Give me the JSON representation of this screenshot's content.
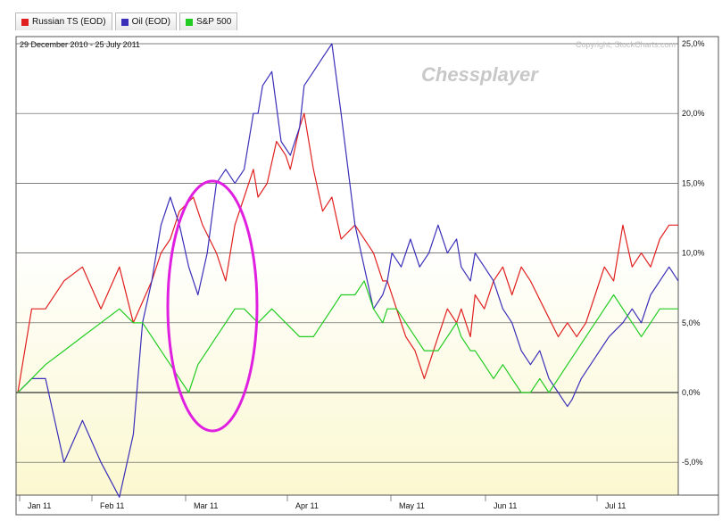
{
  "legend": [
    {
      "label": "Russian TS (EOD)",
      "color": "#e02020"
    },
    {
      "label": "Oil (EOD)",
      "color": "#3a2fb8"
    },
    {
      "label": "S&P 500",
      "color": "#22cc22"
    }
  ],
  "header": {
    "date_range": "29 December 2010 - 25 July 2011",
    "copyright": "Copyright, StockCharts.com"
  },
  "watermark": "Chessplayer",
  "colors": {
    "annotation_circle": "#e020e0",
    "background_bottom": "#fbf8d0"
  },
  "chart_data": {
    "type": "line",
    "x_ticks": [
      "Jan 11",
      "Feb 11",
      "Mar 11",
      "Apr 11",
      "May 11",
      "Jun 11",
      "Jul 11"
    ],
    "y_ticks": [
      "25,0%",
      "20,0%",
      "15,0%",
      "10,0%",
      "5,0%",
      "0,0%",
      "-5,0%"
    ],
    "ylim": [
      -7.5,
      25.5
    ],
    "xlim": [
      0,
      143
    ],
    "grid": true,
    "series": [
      {
        "name": "Russian TS (EOD)",
        "color": "#e02020",
        "x": [
          0,
          3,
          6,
          10,
          14,
          18,
          22,
          25,
          29,
          31,
          33,
          35,
          38,
          40,
          43,
          45,
          47,
          49,
          51,
          52,
          54,
          56,
          58,
          59,
          61,
          62,
          64,
          66,
          68,
          70,
          73,
          77,
          79,
          80,
          82,
          84,
          86,
          88,
          91,
          93,
          95,
          96,
          98,
          99,
          101,
          103,
          105,
          107,
          109,
          111,
          114,
          117,
          119,
          121,
          123,
          125,
          127,
          129,
          131,
          133,
          135,
          137,
          139,
          141,
          143
        ],
        "y": [
          0,
          6,
          6,
          8,
          9,
          6,
          9,
          5,
          8,
          10,
          11,
          13,
          14,
          12,
          10,
          8,
          12,
          14,
          16,
          14,
          15,
          18,
          17,
          16,
          19,
          20,
          16,
          13,
          14,
          11,
          12,
          10,
          8,
          8,
          6,
          4,
          3,
          1,
          4,
          6,
          5,
          6,
          4,
          7,
          6,
          8,
          9,
          7,
          9,
          8,
          6,
          4,
          5,
          4,
          5,
          7,
          9,
          8,
          12,
          9,
          10,
          9,
          11,
          12,
          12
        ]
      },
      {
        "name": "Oil (EOD)",
        "color": "#3a2fb8",
        "x": [
          0,
          3,
          6,
          10,
          14,
          18,
          22,
          25,
          27,
          29,
          31,
          33,
          35,
          37,
          39,
          41,
          43,
          45,
          47,
          49,
          51,
          52,
          53,
          55,
          57,
          59,
          61,
          62,
          64,
          66,
          68,
          70,
          73,
          75,
          77,
          79,
          80,
          81,
          83,
          85,
          87,
          89,
          91,
          93,
          95,
          96,
          98,
          99,
          101,
          103,
          105,
          107,
          109,
          111,
          113,
          115,
          117,
          119,
          120,
          122,
          124,
          126,
          128,
          131,
          133,
          135,
          137,
          139,
          141,
          143
        ],
        "y": [
          0,
          1,
          1,
          -5,
          -2,
          -5,
          -7.5,
          -3,
          5,
          8,
          12,
          14,
          12,
          9,
          7,
          10,
          15,
          16,
          15,
          16,
          20,
          20,
          22,
          23,
          18,
          17,
          19,
          22,
          23,
          24,
          25,
          20,
          12,
          9,
          6,
          7,
          8,
          10,
          9,
          11,
          9,
          10,
          12,
          10,
          11,
          9,
          8,
          10,
          9,
          8,
          6,
          5,
          3,
          2,
          3,
          1,
          0,
          -1,
          -0.5,
          1,
          2,
          3,
          4,
          5,
          6,
          5,
          7,
          8,
          9,
          8
        ]
      },
      {
        "name": "S&P 500",
        "color": "#22cc22",
        "x": [
          0,
          3,
          6,
          10,
          14,
          18,
          22,
          25,
          27,
          29,
          31,
          33,
          35,
          37,
          39,
          41,
          43,
          45,
          47,
          49,
          52,
          55,
          58,
          61,
          64,
          66,
          68,
          70,
          73,
          75,
          77,
          79,
          80,
          82,
          84,
          86,
          88,
          91,
          93,
          95,
          96,
          98,
          99,
          101,
          103,
          105,
          107,
          109,
          111,
          113,
          115,
          117,
          119,
          121,
          123,
          125,
          127,
          129,
          131,
          133,
          135,
          137,
          139,
          141,
          143
        ],
        "y": [
          0,
          1,
          2,
          3,
          4,
          5,
          6,
          5,
          5,
          4,
          3,
          2,
          1,
          0,
          2,
          3,
          4,
          5,
          6,
          6,
          5,
          6,
          5,
          4,
          4,
          5,
          6,
          7,
          7,
          8,
          6,
          5,
          6,
          6,
          5,
          4,
          3,
          3,
          4,
          5,
          4,
          3,
          3,
          2,
          1,
          2,
          1,
          0,
          0,
          1,
          0,
          1,
          2,
          3,
          4,
          5,
          6,
          7,
          6,
          5,
          4,
          5,
          6,
          6,
          6
        ]
      }
    ],
    "annotations": [
      {
        "shape": "ellipse",
        "color": "#e020e0"
      }
    ]
  }
}
